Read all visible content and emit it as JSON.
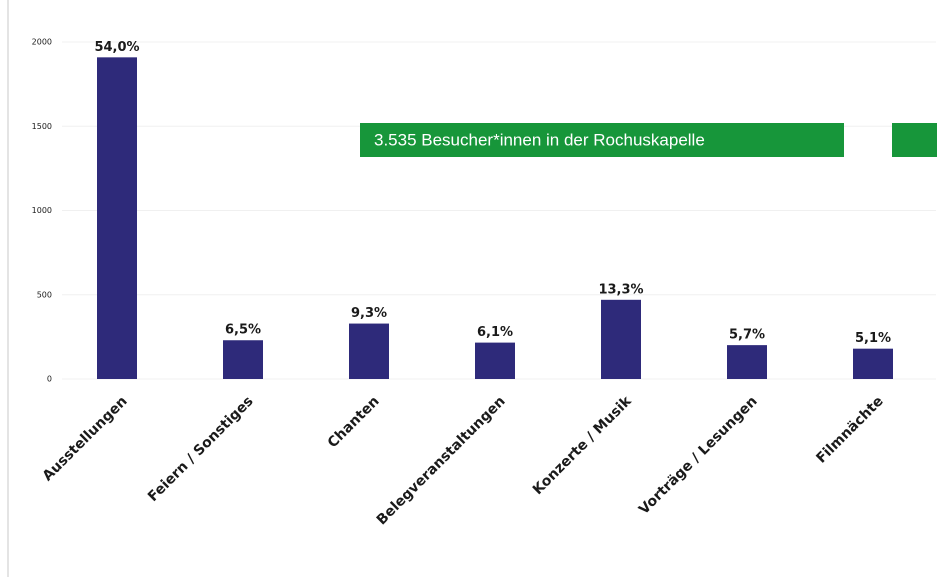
{
  "chart_data": {
    "type": "bar",
    "categories": [
      "Ausstellungen",
      "Feiern / Sonstiges",
      "Chanten",
      "Belegveranstaltungen",
      "Konzerte / Musik",
      "Vorträge / Lesungen",
      "Filmnächte"
    ],
    "values": [
      1909,
      230,
      329,
      216,
      470,
      201,
      180
    ],
    "value_labels": [
      "54,0%",
      "6,5%",
      "9,3%",
      "6,1%",
      "13,3%",
      "5,7%",
      "5,1%"
    ],
    "color": "#2e2a7a",
    "ylim": [
      0,
      2000
    ],
    "yticks": [
      0,
      500,
      1000,
      1500,
      2000
    ],
    "grid": true,
    "annotation": "3.535 Besucher*innen in der Rochuskapelle"
  }
}
